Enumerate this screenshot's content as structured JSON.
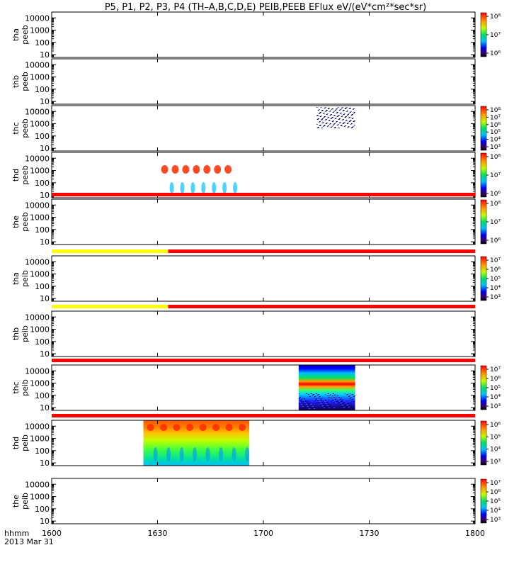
{
  "title": "P5, P1, P2, P3, P4 (TH–A,B,C,D,E) PEIB,PEEB EFlux eV/(eV*cm²*sec*sr)",
  "time_axis": {
    "label": "hhmm",
    "date": "2013 Mar 31",
    "tick_labels": [
      "1600",
      "1630",
      "1700",
      "1730",
      "1800"
    ]
  },
  "chart_data": {
    "type": "heatmap",
    "title": "P5, P1, P2, P3, P4 (TH–A,B,C,D,E) PEIB,PEEB EFlux eV/(eV*cm²*sec*sr)",
    "xlim": [
      "16:00",
      "18:00"
    ],
    "y_scale": "log",
    "ylim_eV": [
      6,
      30000
    ],
    "y_tick_labels": [
      "10",
      "100",
      "1000",
      "10000"
    ],
    "colorbar_scale": "log",
    "panels": [
      {
        "label": "tha peeb",
        "lines": [
          "tha",
          "peeb"
        ],
        "colorbar_ticks": [
          "10⁶",
          "10⁷",
          "10⁸"
        ],
        "data_intervals": [],
        "mode_bar": []
      },
      {
        "label": "thb peeb",
        "lines": [
          "thb",
          "peeb"
        ],
        "colorbar_ticks": [],
        "data_intervals": [],
        "mode_bar": []
      },
      {
        "label": "thc peeb",
        "lines": [
          "thc",
          "peeb"
        ],
        "colorbar_ticks": [
          "10³",
          "10⁴",
          "10⁵",
          "10⁶",
          "10⁷",
          "10⁸"
        ],
        "data_intervals": [
          {
            "start": "17:15",
            "end": "17:26",
            "style": "electron-noise"
          }
        ],
        "mode_bar": []
      },
      {
        "label": "thd peeb",
        "lines": [
          "thd",
          "peeb"
        ],
        "colorbar_ticks": [
          "10⁶",
          "10⁷",
          "10⁸"
        ],
        "data_intervals": [
          {
            "start": "16:26",
            "end": "16:56",
            "style": "electron-bands"
          }
        ],
        "mode_bar": []
      },
      {
        "label": "the peeb",
        "lines": [
          "the",
          "peeb"
        ],
        "colorbar_ticks": [
          "10⁶",
          "10⁷",
          "10⁸"
        ],
        "data_intervals": [],
        "mode_bar": [
          {
            "start": "16:00",
            "end": "18:00",
            "color": "#ff0000"
          }
        ]
      },
      {
        "label": "tha peib",
        "lines": [
          "tha",
          "peib"
        ],
        "colorbar_ticks": [
          "10³",
          "10⁴",
          "10⁵",
          "10⁶",
          "10⁷"
        ],
        "data_intervals": [],
        "mode_bar": [
          {
            "start": "16:00",
            "end": "16:33",
            "color": "#ffff00"
          },
          {
            "start": "16:33",
            "end": "18:00",
            "color": "#ff0000"
          }
        ]
      },
      {
        "label": "thb peib",
        "lines": [
          "thb",
          "peib"
        ],
        "colorbar_ticks": [],
        "data_intervals": [],
        "mode_bar": [
          {
            "start": "16:00",
            "end": "16:33",
            "color": "#ffff00"
          },
          {
            "start": "16:33",
            "end": "18:00",
            "color": "#ff0000"
          }
        ]
      },
      {
        "label": "thc peib",
        "lines": [
          "thc",
          "peib"
        ],
        "colorbar_ticks": [
          "10³",
          "10⁴",
          "10⁵",
          "10⁶",
          "10⁷"
        ],
        "data_intervals": [
          {
            "start": "17:10",
            "end": "17:26",
            "style": "ion-banded"
          }
        ],
        "mode_bar": [
          {
            "start": "16:00",
            "end": "18:00",
            "color": "#ff0000"
          }
        ]
      },
      {
        "label": "thd peib",
        "lines": [
          "thd",
          "peib"
        ],
        "colorbar_ticks": [
          "10³",
          "10⁴",
          "10⁵",
          "10⁶"
        ],
        "data_intervals": [
          {
            "start": "16:26",
            "end": "16:56",
            "style": "ion-hot"
          }
        ],
        "mode_bar": [
          {
            "start": "16:00",
            "end": "18:00",
            "color": "#ff0000"
          }
        ]
      },
      {
        "label": "the peib",
        "lines": [
          "the",
          "peib"
        ],
        "colorbar_ticks": [
          "10³",
          "10⁴",
          "10⁵",
          "10⁶",
          "10⁷"
        ],
        "data_intervals": [],
        "mode_bar": []
      }
    ]
  }
}
